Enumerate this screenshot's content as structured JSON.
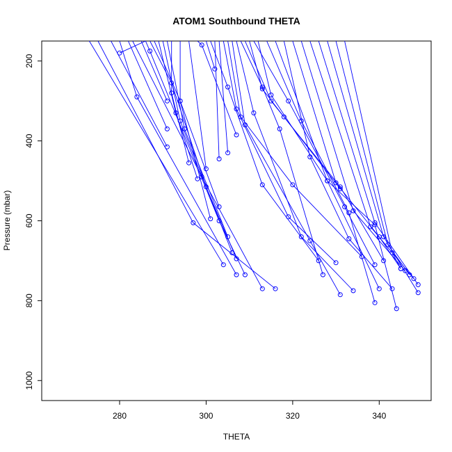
{
  "chart_data": {
    "type": "line",
    "title": "ATOM1 Southbound THETA",
    "xlabel": "THETA",
    "ylabel": "Pressure (mbar)",
    "xlim": [
      262,
      352
    ],
    "ylim": [
      1050,
      150
    ],
    "y_reversed": true,
    "grid": false,
    "legend": "none",
    "line_color": "#0000ff",
    "x_ticks": [
      280,
      300,
      320,
      340
    ],
    "y_ticks": [
      200,
      400,
      600,
      800,
      1000
    ],
    "series": [
      {
        "points": [
          [
            273,
            150
          ],
          [
            304,
            710
          ]
        ]
      },
      {
        "points": [
          [
            275,
            150
          ],
          [
            297,
            605
          ],
          [
            316,
            770
          ]
        ]
      },
      {
        "points": [
          [
            278,
            150
          ],
          [
            291,
            415
          ]
        ]
      },
      {
        "points": [
          [
            280,
            180
          ],
          [
            286,
            150
          ]
        ]
      },
      {
        "points": [
          [
            280,
            150
          ],
          [
            284,
            290
          ],
          [
            307,
            735
          ]
        ]
      },
      {
        "points": [
          [
            282,
            150
          ],
          [
            291,
            370
          ]
        ]
      },
      {
        "points": [
          [
            283,
            150
          ],
          [
            299,
            490
          ],
          [
            313,
            770
          ]
        ]
      },
      {
        "points": [
          [
            285,
            150
          ],
          [
            291,
            300
          ]
        ]
      },
      {
        "points": [
          [
            286,
            150
          ],
          [
            287,
            175
          ],
          [
            303,
            600
          ],
          [
            309,
            735
          ]
        ]
      },
      {
        "points": [
          [
            287,
            150
          ],
          [
            292,
            255
          ],
          [
            300,
            515
          ],
          [
            307,
            695
          ]
        ]
      },
      {
        "points": [
          [
            288,
            150
          ],
          [
            294,
            300
          ],
          [
            303,
            565
          ]
        ]
      },
      {
        "points": [
          [
            289,
            150
          ],
          [
            293,
            330
          ],
          [
            298,
            495
          ]
        ]
      },
      {
        "points": [
          [
            290,
            150
          ],
          [
            294,
            350
          ],
          [
            306,
            680
          ]
        ]
      },
      {
        "points": [
          [
            291,
            150
          ],
          [
            295,
            370
          ],
          [
            305,
            640
          ]
        ]
      },
      {
        "points": [
          [
            292,
            150
          ],
          [
            292,
            280
          ],
          [
            296,
            455
          ]
        ]
      },
      {
        "points": [
          [
            294,
            150
          ],
          [
            294,
            300
          ],
          [
            301,
            595
          ]
        ]
      },
      {
        "points": [
          [
            296,
            150
          ],
          [
            300,
            470
          ]
        ]
      },
      {
        "points": [
          [
            298,
            150
          ],
          [
            299,
            160
          ],
          [
            307,
            385
          ]
        ]
      },
      {
        "points": [
          [
            300,
            150
          ],
          [
            302,
            220
          ]
        ]
      },
      {
        "points": [
          [
            301,
            150
          ],
          [
            305,
            265
          ],
          [
            313,
            510
          ],
          [
            326,
            700
          ]
        ]
      },
      {
        "points": [
          [
            302,
            150
          ],
          [
            303,
            445
          ]
        ]
      },
      {
        "points": [
          [
            303,
            150
          ],
          [
            305,
            430
          ]
        ]
      },
      {
        "points": [
          [
            304,
            150
          ],
          [
            307,
            320
          ],
          [
            319,
            590
          ],
          [
            330,
            705
          ]
        ]
      },
      {
        "points": [
          [
            305,
            150
          ],
          [
            308,
            340
          ],
          [
            320,
            510
          ],
          [
            336,
            690
          ]
        ]
      },
      {
        "points": [
          [
            306,
            150
          ],
          [
            309,
            360
          ],
          [
            324,
            650
          ],
          [
            331,
            785
          ]
        ]
      },
      {
        "points": [
          [
            307,
            150
          ],
          [
            311,
            330
          ],
          [
            322,
            640
          ],
          [
            334,
            775
          ]
        ]
      },
      {
        "points": [
          [
            308,
            150
          ],
          [
            313,
            265
          ],
          [
            317,
            370
          ],
          [
            327,
            735
          ]
        ]
      },
      {
        "points": [
          [
            309,
            150
          ],
          [
            315,
            300
          ],
          [
            331,
            515
          ],
          [
            341,
            700
          ]
        ]
      },
      {
        "points": [
          [
            310,
            150
          ],
          [
            313,
            270
          ],
          [
            318,
            340
          ],
          [
            331,
            520
          ]
        ]
      },
      {
        "points": [
          [
            311,
            150
          ],
          [
            319,
            300
          ],
          [
            332,
            565
          ],
          [
            339,
            710
          ]
        ]
      },
      {
        "points": [
          [
            312,
            150
          ],
          [
            315,
            285
          ],
          [
            328,
            500
          ],
          [
            340,
            770
          ]
        ]
      },
      {
        "points": [
          [
            314,
            150
          ],
          [
            322,
            350
          ],
          [
            333,
            580
          ],
          [
            339,
            805
          ]
        ]
      },
      {
        "points": [
          [
            316,
            150
          ],
          [
            328,
            500
          ],
          [
            339,
            610
          ],
          [
            344,
            820
          ]
        ]
      },
      {
        "points": [
          [
            318,
            150
          ],
          [
            324,
            440
          ],
          [
            333,
            645
          ],
          [
            343,
            770
          ]
        ]
      },
      {
        "points": [
          [
            320,
            150
          ],
          [
            330,
            505
          ],
          [
            340,
            640
          ],
          [
            345,
            720
          ]
        ]
      },
      {
        "points": [
          [
            322,
            150
          ],
          [
            334,
            575
          ],
          [
            346,
            725
          ]
        ]
      },
      {
        "points": [
          [
            324,
            150
          ],
          [
            338,
            615
          ],
          [
            348,
            745
          ]
        ]
      },
      {
        "points": [
          [
            326,
            150
          ],
          [
            339,
            605
          ],
          [
            349,
            760
          ]
        ]
      },
      {
        "points": [
          [
            328,
            150
          ],
          [
            341,
            640
          ],
          [
            349,
            780
          ]
        ]
      },
      {
        "points": [
          [
            330,
            150
          ],
          [
            342,
            660
          ],
          [
            347,
            735
          ]
        ]
      },
      {
        "points": [
          [
            332,
            150
          ],
          [
            343,
            680
          ],
          [
            345,
            720
          ]
        ]
      }
    ]
  }
}
